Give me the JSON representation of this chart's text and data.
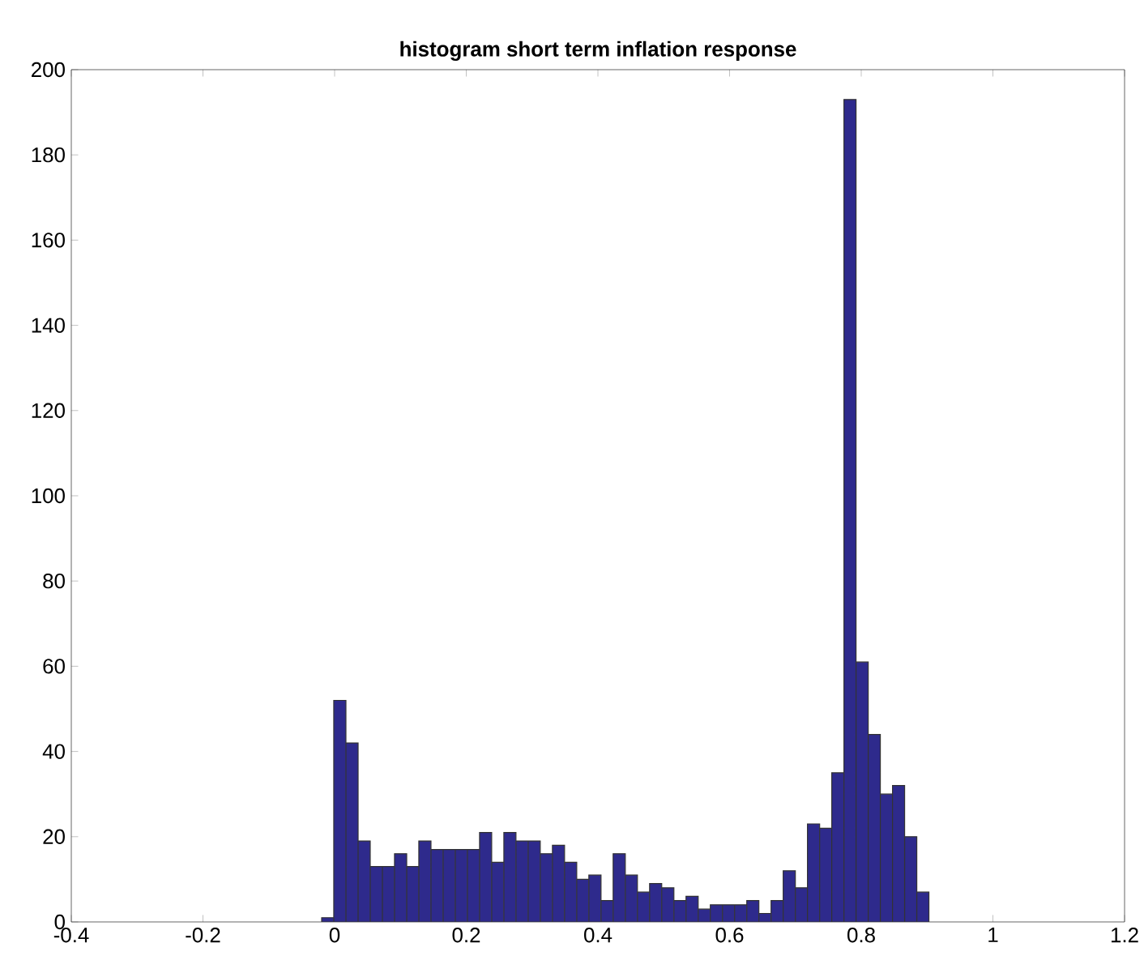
{
  "chart_data": {
    "type": "histogram",
    "title": "histogram short term inflation response",
    "bins": [
      -0.0197,
      -0.0013,
      0.0172,
      0.0357,
      0.0541,
      0.0726,
      0.091,
      0.1095,
      0.1279,
      0.1464,
      0.1648,
      0.1833,
      0.2017,
      0.2202,
      0.2386,
      0.2571,
      0.2755,
      0.294,
      0.3124,
      0.3309,
      0.3493,
      0.3678,
      0.3862,
      0.4047,
      0.4231,
      0.4416,
      0.46,
      0.4785,
      0.4969,
      0.5154,
      0.5338,
      0.5523,
      0.5707,
      0.5892,
      0.6076,
      0.6261,
      0.6445,
      0.663,
      0.6814,
      0.6999,
      0.7183,
      0.7368,
      0.7552,
      0.7737,
      0.7921,
      0.8106,
      0.829,
      0.8475,
      0.8659,
      0.8844,
      0.9028
    ],
    "values": [
      1,
      52,
      42,
      19,
      13,
      13,
      16,
      13,
      19,
      17,
      17,
      17,
      17,
      21,
      14,
      21,
      19,
      19,
      16,
      18,
      14,
      10,
      11,
      5,
      16,
      11,
      7,
      9,
      8,
      5,
      6,
      3,
      4,
      4,
      4,
      5,
      2,
      5,
      12,
      8,
      23,
      22,
      35,
      193,
      61,
      44,
      30,
      32,
      20,
      7
    ],
    "color": "#2e2a8c",
    "xlim": [
      -0.4,
      1.2
    ],
    "ylim": [
      0,
      200
    ],
    "xticks": [
      -0.4,
      -0.2,
      0,
      0.2,
      0.4,
      0.6,
      0.8,
      1,
      1.2
    ],
    "yticks": [
      0,
      20,
      40,
      60,
      80,
      100,
      120,
      140,
      160,
      180,
      200
    ]
  }
}
